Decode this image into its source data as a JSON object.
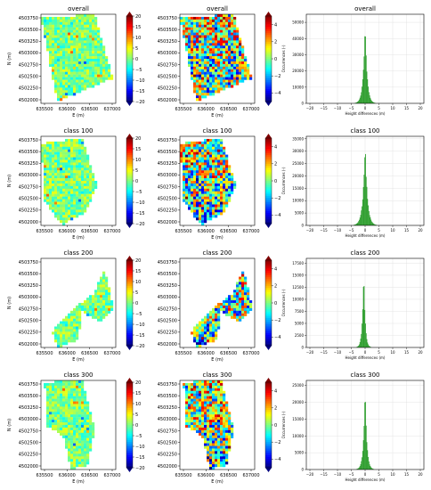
{
  "figure": {
    "columns": [
      "difference-map-20",
      "difference-map-5",
      "histogram"
    ]
  },
  "palette": {
    "jet": [
      "#00007f",
      "#0000ff",
      "#007fff",
      "#00ffff",
      "#7fff7f",
      "#ffff00",
      "#ff7f00",
      "#ff0000",
      "#7f0000"
    ],
    "hist": "#2e9e2e",
    "grid": "#dddddd",
    "frame": "#000000"
  },
  "chart_data": [
    {
      "type": "heatmap",
      "row": 0,
      "col": 0,
      "title": "overall",
      "xlabel": "E (m)",
      "ylabel": "N (m)",
      "xticks": [
        "635500",
        "636000",
        "636500",
        "637000"
      ],
      "yticks": [
        "4503750",
        "4503500",
        "4503250",
        "4503000",
        "4502750",
        "4502500",
        "4502250",
        "4502000"
      ],
      "colorbar": {
        "min": -20,
        "max": 20,
        "ticks": [
          "20",
          "15",
          "10",
          "5",
          "0",
          "−5",
          "−10",
          "−15",
          "−20"
        ]
      },
      "mask": "overall",
      "variance": "small"
    },
    {
      "type": "heatmap",
      "row": 0,
      "col": 1,
      "title": "overall",
      "xlabel": "E (m)",
      "ylabel": "",
      "xticks": [
        "635500",
        "636000",
        "636500",
        "637000"
      ],
      "yticks": [
        "4503750",
        "4503500",
        "4503250",
        "4503000",
        "4502750",
        "4502500",
        "4502250",
        "4502000"
      ],
      "colorbar": {
        "min": -5,
        "max": 5,
        "ticks": [
          "4",
          "2",
          "0",
          "−2",
          "−4"
        ]
      },
      "mask": "overall",
      "variance": "large"
    },
    {
      "type": "bar",
      "row": 0,
      "col": 2,
      "title": "overall",
      "xlabel": "Height differences (m)",
      "ylabel": "Occurrences (-)",
      "xlim": [
        -20,
        20
      ],
      "ymax": 55000,
      "xticks": [
        "−20",
        "−15",
        "−10",
        "−5",
        "0",
        "5",
        "10",
        "15",
        "20"
      ],
      "yticks": [
        "0",
        "10000",
        "20000",
        "30000",
        "40000",
        "50000"
      ],
      "peak": 52000,
      "center": 0,
      "width": 0.7
    },
    {
      "type": "heatmap",
      "row": 1,
      "col": 0,
      "title": "class 100",
      "xlabel": "E (m)",
      "ylabel": "N (m)",
      "xticks": [
        "635500",
        "636000",
        "636500",
        "637000"
      ],
      "yticks": [
        "4503750",
        "4503500",
        "4503250",
        "4503000",
        "4502750",
        "4502500",
        "4502250",
        "4502000"
      ],
      "colorbar": {
        "min": -20,
        "max": 20,
        "ticks": [
          "20",
          "15",
          "10",
          "5",
          "0",
          "−5",
          "−10",
          "−15",
          "−20"
        ]
      },
      "mask": "class100",
      "variance": "small"
    },
    {
      "type": "heatmap",
      "row": 1,
      "col": 1,
      "title": "class 100",
      "xlabel": "E (m)",
      "ylabel": "",
      "xticks": [
        "635500",
        "636000",
        "636500",
        "637000"
      ],
      "yticks": [
        "4503750",
        "4503500",
        "4503250",
        "4503000",
        "4502750",
        "4502500",
        "4502250",
        "4502000"
      ],
      "colorbar": {
        "min": -5,
        "max": 5,
        "ticks": [
          "4",
          "2",
          "0",
          "−2",
          "−4"
        ]
      },
      "mask": "class100",
      "variance": "large"
    },
    {
      "type": "bar",
      "row": 1,
      "col": 2,
      "title": "class 100",
      "xlabel": "Height differences (m)",
      "ylabel": "Occurrences (-)",
      "xlim": [
        -20,
        20
      ],
      "ymax": 36000,
      "xticks": [
        "−20",
        "−15",
        "−10",
        "−5",
        "0",
        "5",
        "10",
        "15",
        "20"
      ],
      "yticks": [
        "0",
        "5000",
        "10000",
        "15000",
        "20000",
        "25000",
        "30000",
        "35000"
      ],
      "peak": 34000,
      "center": 0,
      "width": 0.8
    },
    {
      "type": "heatmap",
      "row": 2,
      "col": 0,
      "title": "class 200",
      "xlabel": "E (m)",
      "ylabel": "N (m)",
      "xticks": [
        "635500",
        "636000",
        "636500",
        "637000"
      ],
      "yticks": [
        "4503750",
        "4503500",
        "4503250",
        "4503000",
        "4502750",
        "4502500",
        "4502250",
        "4502000"
      ],
      "colorbar": {
        "min": -20,
        "max": 20,
        "ticks": [
          "20",
          "15",
          "10",
          "5",
          "0",
          "−5",
          "−10",
          "−15",
          "−20"
        ]
      },
      "mask": "class200",
      "variance": "small"
    },
    {
      "type": "heatmap",
      "row": 2,
      "col": 1,
      "title": "class 200",
      "xlabel": "E (m)",
      "ylabel": "",
      "xticks": [
        "635500",
        "636000",
        "636500",
        "637000"
      ],
      "yticks": [
        "4503750",
        "4503500",
        "4503250",
        "4503000",
        "4502750",
        "4502500",
        "4502250",
        "4502000"
      ],
      "colorbar": {
        "min": -5,
        "max": 5,
        "ticks": [
          "4",
          "2",
          "0",
          "−2",
          "−4"
        ]
      },
      "mask": "class200",
      "variance": "large"
    },
    {
      "type": "bar",
      "row": 2,
      "col": 2,
      "title": "class 200",
      "xlabel": "Height differences (m)",
      "ylabel": "Occurrences (-)",
      "xlim": [
        -20,
        20
      ],
      "ymax": 18500,
      "xticks": [
        "−20",
        "−15",
        "−10",
        "−5",
        "0",
        "5",
        "10",
        "15",
        "20"
      ],
      "yticks": [
        "0",
        "2500",
        "5000",
        "7500",
        "10000",
        "12500",
        "15000",
        "17500"
      ],
      "peak": 17500,
      "center": -0.5,
      "width": 0.5
    },
    {
      "type": "heatmap",
      "row": 3,
      "col": 0,
      "title": "class 300",
      "xlabel": "E (m)",
      "ylabel": "N (m)",
      "xticks": [
        "635500",
        "636000",
        "636500",
        "637000"
      ],
      "yticks": [
        "4503750",
        "4503500",
        "4503250",
        "4503000",
        "4502750",
        "4502500",
        "4502250",
        "4502000"
      ],
      "colorbar": {
        "min": -20,
        "max": 20,
        "ticks": [
          "20",
          "15",
          "10",
          "5",
          "0",
          "−5",
          "−10",
          "−15",
          "−20"
        ]
      },
      "mask": "class300",
      "variance": "small"
    },
    {
      "type": "heatmap",
      "row": 3,
      "col": 1,
      "title": "class 300",
      "xlabel": "E (m)",
      "ylabel": "",
      "xticks": [
        "635500",
        "636000",
        "636500",
        "637000"
      ],
      "yticks": [
        "4503750",
        "4503500",
        "4503250",
        "4503000",
        "4502750",
        "4502500",
        "4502250",
        "4502000"
      ],
      "colorbar": {
        "min": -5,
        "max": 5,
        "ticks": [
          "4",
          "2",
          "0",
          "−2",
          "−4"
        ]
      },
      "mask": "class300",
      "variance": "large"
    },
    {
      "type": "bar",
      "row": 3,
      "col": 2,
      "title": "class 300",
      "xlabel": "Height differences (m)",
      "ylabel": "Occurrences (-)",
      "xlim": [
        -20,
        20
      ],
      "ymax": 26500,
      "xticks": [
        "−20",
        "−15",
        "−10",
        "−5",
        "0",
        "5",
        "10",
        "15",
        "20"
      ],
      "yticks": [
        "0",
        "5000",
        "10000",
        "15000",
        "20000",
        "25000"
      ],
      "peak": 25000,
      "center": 0,
      "width": 0.6
    }
  ]
}
